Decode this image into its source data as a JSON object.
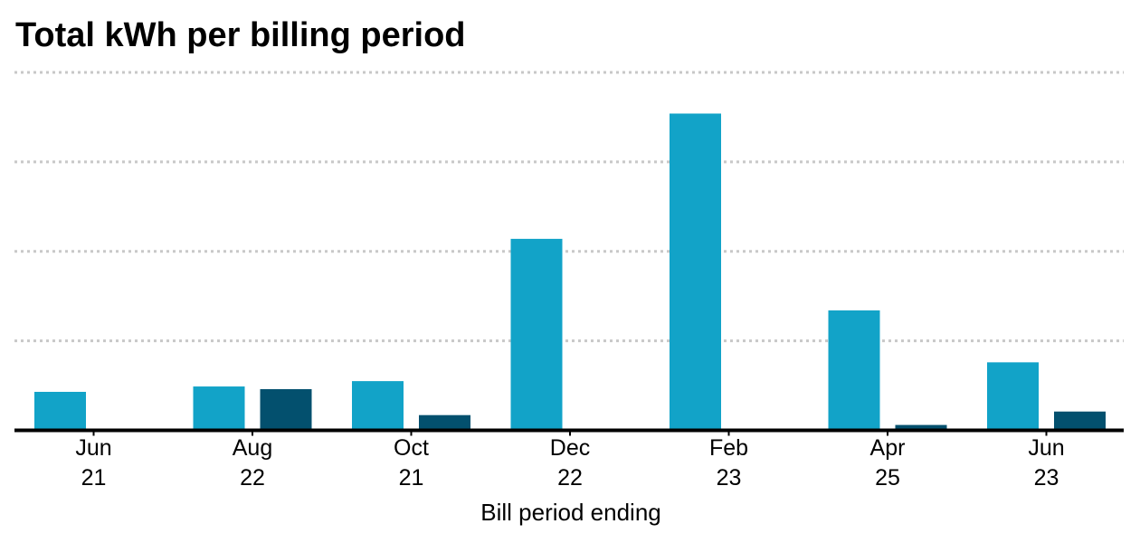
{
  "chart_data": {
    "type": "bar",
    "title": "Total kWh per billing period",
    "xlabel": "Bill period ending",
    "ylabel": "",
    "categories": [
      {
        "month": "Jun",
        "day": "21"
      },
      {
        "month": "Aug",
        "day": "22"
      },
      {
        "month": "Oct",
        "day": "21"
      },
      {
        "month": "Dec",
        "day": "22"
      },
      {
        "month": "Feb",
        "day": "23"
      },
      {
        "month": "Apr",
        "day": "25"
      },
      {
        "month": "Jun",
        "day": "23"
      }
    ],
    "series": [
      {
        "color": "#12a3c8",
        "values": [
          43,
          49,
          55,
          214,
          354,
          134,
          76
        ]
      },
      {
        "color": "#03506e",
        "values": [
          0,
          46,
          17,
          0,
          0,
          6,
          21
        ]
      }
    ],
    "ylim": [
      0,
      400
    ],
    "yticks": [
      100,
      200,
      300,
      400
    ],
    "y_tick_labels_shown": false,
    "grid": true,
    "legend": "none"
  }
}
